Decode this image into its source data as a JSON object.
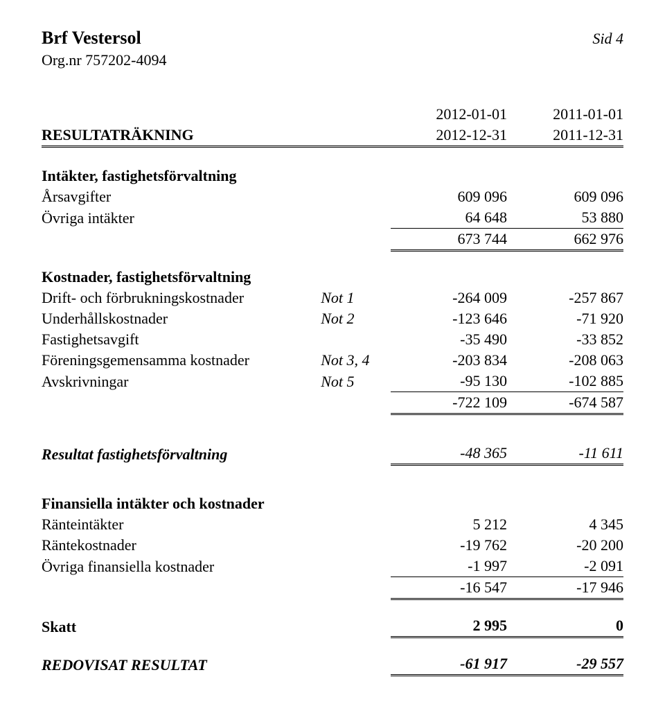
{
  "header": {
    "company": "Brf Vestersol",
    "org_label": "Org.nr 757202-4094",
    "page_label": "Sid 4"
  },
  "periods": {
    "col1_from": "2012-01-01",
    "col1_to": "2012-12-31",
    "col2_from": "2011-01-01",
    "col2_to": "2011-12-31"
  },
  "title": "RESULTATRÄKNING",
  "income": {
    "heading": "Intäkter, fastighetsförvaltning",
    "rows": [
      {
        "label": "Årsavgifter",
        "v1": "609 096",
        "v2": "609 096"
      },
      {
        "label": "Övriga intäkter",
        "v1": "64 648",
        "v2": "53 880"
      }
    ],
    "sum": {
      "v1": "673 744",
      "v2": "662 976"
    }
  },
  "costs": {
    "heading": "Kostnader, fastighetsförvaltning",
    "rows": [
      {
        "label": "Drift- och förbrukningskostnader",
        "note": "Not 1",
        "v1": "-264 009",
        "v2": "-257 867"
      },
      {
        "label": "Underhållskostnader",
        "note": "Not 2",
        "v1": "-123 646",
        "v2": "-71 920"
      },
      {
        "label": "Fastighetsavgift",
        "note": "",
        "v1": "-35 490",
        "v2": "-33 852"
      },
      {
        "label": "Föreningsgemensamma kostnader",
        "note": "Not 3, 4",
        "v1": "-203 834",
        "v2": "-208 063"
      },
      {
        "label": "Avskrivningar",
        "note": "Not 5",
        "v1": "-95 130",
        "v2": "-102 885"
      }
    ],
    "sum": {
      "v1": "-722 109",
      "v2": "-674 587"
    }
  },
  "op_result": {
    "label": "Resultat fastighetsförvaltning",
    "v1": "-48 365",
    "v2": "-11 611"
  },
  "financial": {
    "heading": "Finansiella intäkter och kostnader",
    "rows": [
      {
        "label": "Ränteintäkter",
        "v1": "5 212",
        "v2": "4 345"
      },
      {
        "label": "Räntekostnader",
        "v1": "-19 762",
        "v2": "-20 200"
      },
      {
        "label": "Övriga finansiella kostnader",
        "v1": "-1 997",
        "v2": "-2 091"
      }
    ],
    "sum": {
      "v1": "-16 547",
      "v2": "-17 946"
    }
  },
  "tax": {
    "label": "Skatt",
    "v1": "2 995",
    "v2": "0"
  },
  "final": {
    "label": "REDOVISAT RESULTAT",
    "v1": "-61 917",
    "v2": "-29 557"
  }
}
